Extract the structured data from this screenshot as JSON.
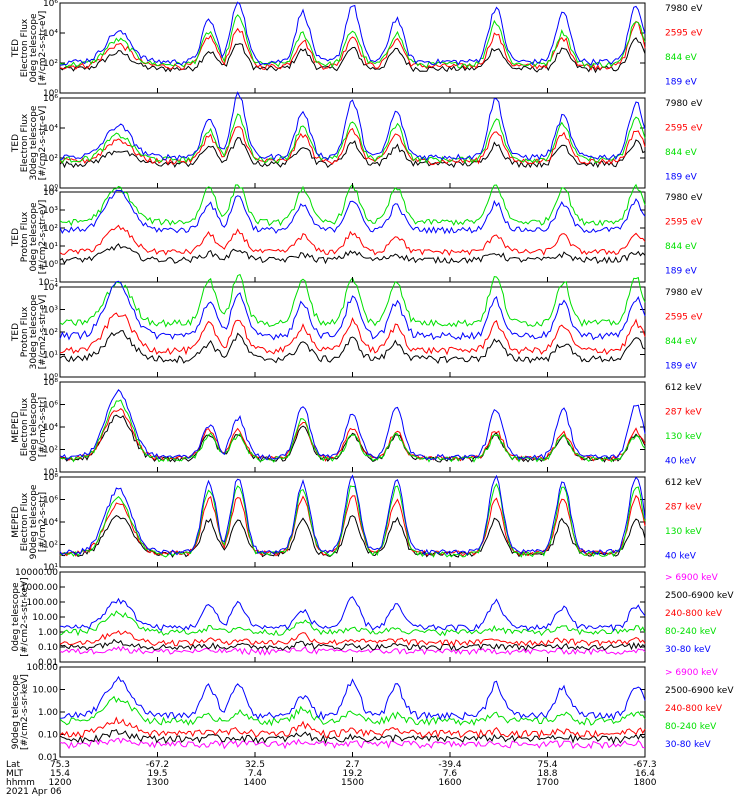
{
  "colors": {
    "black": "#000000",
    "red": "#ff0000",
    "green": "#00e000",
    "blue": "#0000ff",
    "magenta": "#ff00ff",
    "bright_green": "#33ff33",
    "background": "#ffffff"
  },
  "chart_data": [
    {
      "type": "line",
      "panel_id": "ted-electron-0deg",
      "ylabel_lines": [
        "TED",
        "Electron Flux",
        "0deg telescope",
        "[#/cm2-s-str-eV]"
      ],
      "yscale": "log",
      "ylim": [
        1,
        1000000
      ],
      "y_ticks": [
        "10⁶",
        "10⁴",
        "10²",
        "10⁰"
      ],
      "series": [
        {
          "name": "7980 eV",
          "color": "#000000",
          "base": 40,
          "levels": [
            1.2,
            1.3,
            1.9,
            1.4,
            1.5,
            1.4,
            1.6,
            1.4,
            2.2
          ]
        },
        {
          "name": "2595 eV",
          "color": "#ff0000",
          "base": 60,
          "levels": [
            1.6,
            2.2,
            2.8,
            1.9,
            2.2,
            2.0,
            2.4,
            2.1,
            3.2
          ]
        },
        {
          "name": "844 eV",
          "color": "#00e000",
          "base": 80,
          "levels": [
            1.8,
            2.4,
            3.6,
            2.3,
            2.5,
            2.3,
            3.2,
            2.4,
            3.4
          ]
        },
        {
          "name": "189 eV",
          "color": "#0000ff",
          "base": 120,
          "levels": [
            2.2,
            3.1,
            4.5,
            3.7,
            4.2,
            3.2,
            4.0,
            3.6,
            4.2
          ]
        }
      ]
    },
    {
      "type": "line",
      "panel_id": "ted-electron-30deg",
      "ylabel_lines": [
        "TED",
        "Electron Flux",
        "30deg telescope",
        "[#/cm2-s-str-eV]"
      ],
      "yscale": "log",
      "ylim": [
        1,
        1000000
      ],
      "y_ticks": [
        "10⁶",
        "10⁴",
        "10²",
        "10⁰"
      ],
      "series": [
        {
          "name": "7980 eV",
          "color": "#000000",
          "base": 40,
          "levels": [
            1.0,
            1.3,
            1.8,
            1.4,
            1.6,
            1.3,
            1.5,
            1.4,
            1.6
          ]
        },
        {
          "name": "2595 eV",
          "color": "#ff0000",
          "base": 60,
          "levels": [
            1.6,
            1.9,
            2.6,
            2.0,
            2.3,
            2.0,
            2.3,
            2.0,
            2.3
          ]
        },
        {
          "name": "844 eV",
          "color": "#00e000",
          "base": 80,
          "levels": [
            1.8,
            2.2,
            3.2,
            2.5,
            2.8,
            2.6,
            3.0,
            2.6,
            3.1
          ]
        },
        {
          "name": "189 eV",
          "color": "#0000ff",
          "base": 120,
          "levels": [
            2.3,
            2.8,
            4.6,
            3.3,
            4.1,
            3.3,
            4.3,
            3.0,
            4.1
          ]
        }
      ]
    },
    {
      "type": "line",
      "panel_id": "ted-proton-0deg",
      "ylabel_lines": [
        "TED",
        "Proton Flux",
        "0deg telescope",
        "[#/cm2-s-str-eV]"
      ],
      "yscale": "log",
      "ylim": [
        0.01,
        10000
      ],
      "y_ticks": [
        "10⁴",
        "10³",
        "10²",
        "10¹",
        "10⁰",
        "10⁻¹"
      ],
      "series": [
        {
          "name": "7980 eV",
          "color": "#000000",
          "base": 0.3,
          "levels": [
            1.0,
            0.5,
            0.8,
            0.4,
            0.6,
            0.4,
            0.5,
            0.4,
            0.5
          ]
        },
        {
          "name": "2595 eV",
          "color": "#ff0000",
          "base": 1.0,
          "levels": [
            1.8,
            1.3,
            1.5,
            1.2,
            1.4,
            1.2,
            1.3,
            1.2,
            1.3
          ]
        },
        {
          "name": "844 eV",
          "color": "#00e000",
          "base": 100,
          "levels": [
            2.5,
            2.6,
            2.8,
            2.5,
            2.6,
            2.5,
            2.7,
            2.6,
            2.7
          ]
        },
        {
          "name": "189 eV",
          "color": "#0000ff",
          "base": 30,
          "levels": [
            2.8,
            2.0,
            2.5,
            1.8,
            2.2,
            1.8,
            2.0,
            1.9,
            2.1
          ]
        }
      ]
    },
    {
      "type": "line",
      "panel_id": "ted-proton-30deg",
      "ylabel_lines": [
        "TED",
        "Proton Flux",
        "30deg telescope",
        "[#/cm2-s-str-eV]"
      ],
      "yscale": "log",
      "ylim": [
        0.1,
        10000
      ],
      "y_ticks": [
        "10⁴",
        "10³",
        "10²",
        "10¹",
        "10⁰"
      ],
      "series": [
        {
          "name": "7980 eV",
          "color": "#000000",
          "base": 1,
          "levels": [
            1.7,
            1.0,
            1.4,
            1.0,
            1.2,
            1.0,
            1.1,
            1.0,
            1.2
          ]
        },
        {
          "name": "2595 eV",
          "color": "#ff0000",
          "base": 3,
          "levels": [
            2.3,
            1.6,
            1.9,
            1.5,
            1.8,
            1.5,
            1.7,
            1.5,
            1.7
          ]
        },
        {
          "name": "844 eV",
          "color": "#00e000",
          "base": 100,
          "levels": [
            2.5,
            2.7,
            2.9,
            2.6,
            2.7,
            2.6,
            2.8,
            2.6,
            2.8
          ]
        },
        {
          "name": "189 eV",
          "color": "#0000ff",
          "base": 20,
          "levels": [
            3.2,
            2.1,
            2.6,
            2.0,
            2.3,
            2.0,
            2.2,
            2.0,
            2.3
          ]
        }
      ]
    },
    {
      "type": "line",
      "panel_id": "meped-electron-0deg",
      "ylabel_lines": [
        "MEPED",
        "Electron Flux",
        "0deg telescope",
        "[#/cm2-s-str]"
      ],
      "yscale": "log",
      "ylim": [
        10,
        100000000.0
      ],
      "y_ticks": [
        "10⁸",
        "10⁶",
        "10⁴",
        "10²",
        "10¹"
      ],
      "series": [
        {
          "name": "612 keV",
          "color": "#000000",
          "base": 100,
          "levels": [
            3.8,
            2.2,
            2.2,
            2.9,
            2.3,
            2.1,
            2.2,
            2.0,
            2.2
          ]
        },
        {
          "name": "287 keV",
          "color": "#ff0000",
          "base": 120,
          "levels": [
            4.3,
            2.5,
            2.4,
            3.2,
            2.5,
            2.3,
            2.4,
            2.2,
            2.4
          ]
        },
        {
          "name": "130 keV",
          "color": "#00e000",
          "base": 100,
          "levels": [
            5.0,
            2.1,
            2.1,
            3.6,
            2.1,
            2.1,
            2.1,
            2.1,
            2.1
          ]
        },
        {
          "name": "40 keV",
          "color": "#0000ff",
          "base": 150,
          "levels": [
            5.6,
            2.8,
            3.4,
            4.4,
            3.8,
            4.2,
            4.0,
            4.1,
            4.6
          ]
        }
      ]
    },
    {
      "type": "line",
      "panel_id": "meped-electron-90deg",
      "ylabel_lines": [
        "MEPED",
        "Electron Flux",
        "90deg telescope",
        "[#/cm2-s-str]"
      ],
      "yscale": "log",
      "ylim": [
        10,
        100000000.0
      ],
      "y_ticks": [
        "10⁸",
        "10⁶",
        "10⁴",
        "10²",
        "10¹"
      ],
      "series": [
        {
          "name": "612 keV",
          "color": "#000000",
          "base": 100,
          "levels": [
            3.3,
            3.0,
            3.1,
            3.0,
            3.2,
            3.0,
            3.1,
            3.0,
            3.0
          ]
        },
        {
          "name": "287 keV",
          "color": "#ff0000",
          "base": 120,
          "levels": [
            4.3,
            4.8,
            5.0,
            4.8,
            5.0,
            4.6,
            4.8,
            4.6,
            4.8
          ]
        },
        {
          "name": "130 keV",
          "color": "#00e000",
          "base": 100,
          "levels": [
            4.8,
            5.6,
            5.9,
            5.6,
            6.0,
            5.8,
            6.0,
            5.7,
            5.9
          ]
        },
        {
          "name": "40 keV",
          "color": "#0000ff",
          "base": 150,
          "levels": [
            5.4,
            6.0,
            6.4,
            6.0,
            6.4,
            6.2,
            6.4,
            6.1,
            6.6
          ]
        }
      ]
    },
    {
      "type": "line",
      "panel_id": "meped-proton-0deg",
      "ylabel_lines": [
        "0deg telescope",
        "[#/cm2-s-str-keV]"
      ],
      "yscale": "log",
      "ylim": [
        0.01,
        10000
      ],
      "y_ticks": [
        "10000.00",
        "1000.00",
        "100.00",
        "10.00",
        "1.00",
        "0.10",
        "0.01"
      ],
      "series": [
        {
          "name": "> 6900 keV",
          "color": "#ff00ff",
          "base": 0.05,
          "levels": [
            0.2,
            0.05,
            0.05,
            0.2,
            0.05,
            0.05,
            0.05,
            0.05,
            0.05
          ]
        },
        {
          "name": "2500-6900 keV",
          "color": "#000000",
          "base": 0.1,
          "levels": [
            0.4,
            0.1,
            0.1,
            0.3,
            0.1,
            0.1,
            0.1,
            0.1,
            0.1
          ]
        },
        {
          "name": "240-800 keV",
          "color": "#ff0000",
          "base": 0.2,
          "levels": [
            0.8,
            0.2,
            0.2,
            0.6,
            0.2,
            0.2,
            0.2,
            0.2,
            0.2
          ]
        },
        {
          "name": "80-240 keV",
          "color": "#00e000",
          "base": 1,
          "levels": [
            1.4,
            0.3,
            0.3,
            0.8,
            0.3,
            0.3,
            0.3,
            0.3,
            0.3
          ]
        },
        {
          "name": "30-80 keV",
          "color": "#0000ff",
          "base": 2,
          "levels": [
            2.0,
            1.6,
            1.8,
            1.2,
            2.1,
            1.6,
            1.9,
            1.5,
            1.6
          ]
        }
      ]
    },
    {
      "type": "line",
      "panel_id": "meped-proton-90deg",
      "ylabel_lines": [
        "90deg telescope",
        "[#/cm2-s-sr-keV]"
      ],
      "yscale": "log",
      "ylim": [
        0.01,
        1000
      ],
      "y_ticks": [
        "100.00",
        "10.00",
        "1.00",
        "0.10",
        "0.01"
      ],
      "series": [
        {
          "name": "> 6900 keV",
          "color": "#ff00ff",
          "base": 0.05,
          "levels": [
            0.2,
            0.05,
            0.05,
            0.2,
            0.05,
            0.05,
            0.05,
            0.05,
            0.05
          ]
        },
        {
          "name": "2500-6900 keV",
          "color": "#000000",
          "base": 0.1,
          "levels": [
            0.4,
            0.1,
            0.1,
            0.3,
            0.1,
            0.1,
            0.1,
            0.1,
            0.1
          ]
        },
        {
          "name": "240-800 keV",
          "color": "#ff0000",
          "base": 0.2,
          "levels": [
            0.8,
            0.2,
            0.2,
            0.6,
            0.2,
            0.2,
            0.2,
            0.2,
            0.2
          ]
        },
        {
          "name": "80-240 keV",
          "color": "#00e000",
          "base": 1,
          "levels": [
            1.4,
            0.3,
            0.5,
            0.8,
            0.5,
            0.4,
            0.5,
            0.4,
            0.4
          ]
        },
        {
          "name": "30-80 keV",
          "color": "#0000ff",
          "base": 2,
          "levels": [
            2.2,
            1.8,
            2.0,
            1.2,
            2.2,
            1.8,
            2.0,
            1.7,
            1.9
          ]
        }
      ]
    }
  ],
  "x_axis": {
    "row_labels": [
      "Lat",
      "MLT",
      "hhmm"
    ],
    "ticks": [
      {
        "lat": "75.3",
        "mlt": "15.4",
        "hhmm": "1200"
      },
      {
        "lat": "-67.2",
        "mlt": "19.5",
        "hhmm": "1300"
      },
      {
        "lat": "32.5",
        "mlt": "7.4",
        "hhmm": "1400"
      },
      {
        "lat": "2.7",
        "mlt": "19.2",
        "hhmm": "1500"
      },
      {
        "lat": "-39.4",
        "mlt": "7.6",
        "hhmm": "1600"
      },
      {
        "lat": "75.4",
        "mlt": "18.8",
        "hhmm": "1700"
      },
      {
        "lat": "-67.3",
        "mlt": "16.4",
        "hhmm": "1800"
      }
    ],
    "date": "2021 Apr 06"
  }
}
